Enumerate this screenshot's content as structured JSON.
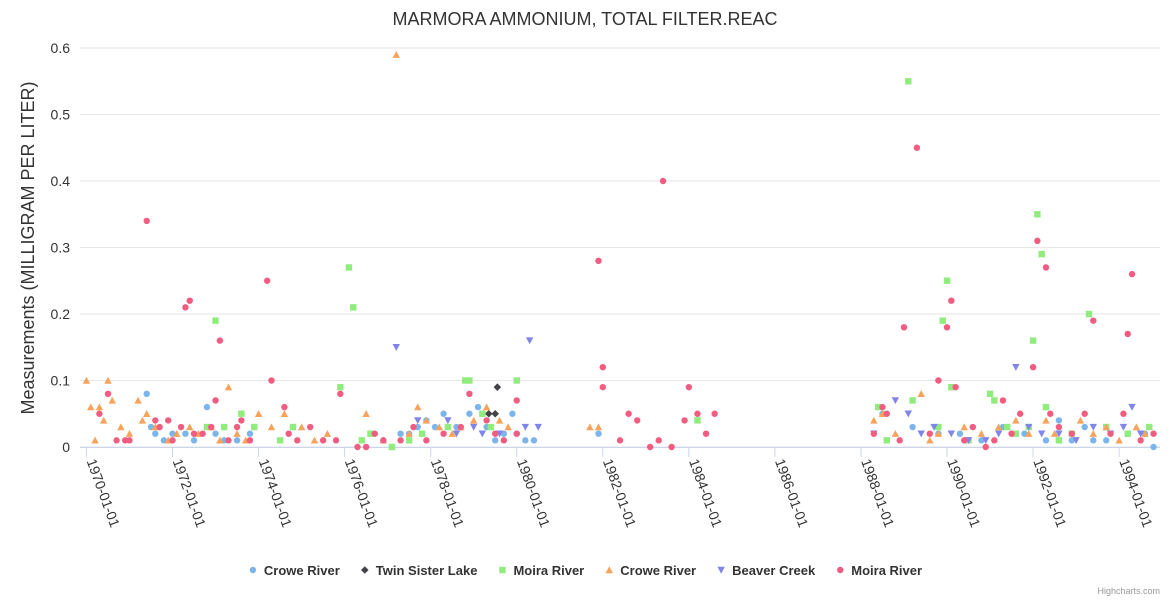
{
  "credit": "Highcharts.com",
  "chart_data": {
    "type": "scatter",
    "title": "MARMORA AMMONIUM, TOTAL FILTER.REAC",
    "ylabel": "Measurements (MILLIGRAM PER LITER)",
    "xlabel": "",
    "xlim": [
      1969.85,
      1994.95
    ],
    "ylim": [
      0,
      0.6
    ],
    "yticks": [
      0,
      0.1,
      0.2,
      0.3,
      0.4,
      0.5,
      0.6
    ],
    "ytick_labels": [
      "0",
      "0.1",
      "0.2",
      "0.3",
      "0.4",
      "0.5",
      "0.6"
    ],
    "xticks": [
      1970,
      1972,
      1974,
      1976,
      1978,
      1980,
      1982,
      1984,
      1986,
      1988,
      1990,
      1992,
      1994
    ],
    "xtick_labels": [
      "1970-01-01",
      "1972-01-01",
      "1974-01-01",
      "1976-01-01",
      "1978-01-01",
      "1980-01-01",
      "1982-01-01",
      "1984-01-01",
      "1986-01-01",
      "1988-01-01",
      "1990-01-01",
      "1992-01-01",
      "1994-01-01"
    ],
    "legend_position": "bottom",
    "series": [
      {
        "name": "Crowe River",
        "marker": "circle",
        "color": "#7cb5ec",
        "points": [
          [
            1971.4,
            0.08
          ],
          [
            1971.5,
            0.03
          ],
          [
            1971.6,
            0.02
          ],
          [
            1971.8,
            0.01
          ],
          [
            1972.0,
            0.02
          ],
          [
            1972.3,
            0.02
          ],
          [
            1972.5,
            0.01
          ],
          [
            1972.8,
            0.06
          ],
          [
            1973.0,
            0.02
          ],
          [
            1973.2,
            0.01
          ],
          [
            1973.5,
            0.01
          ],
          [
            1973.8,
            0.02
          ],
          [
            1976.9,
            0.01
          ],
          [
            1977.3,
            0.02
          ],
          [
            1977.5,
            0.02
          ],
          [
            1977.7,
            0.03
          ],
          [
            1977.9,
            0.04
          ],
          [
            1978.1,
            0.03
          ],
          [
            1978.3,
            0.05
          ],
          [
            1978.6,
            0.03
          ],
          [
            1978.9,
            0.05
          ],
          [
            1979.1,
            0.06
          ],
          [
            1979.3,
            0.03
          ],
          [
            1979.5,
            0.01
          ],
          [
            1979.7,
            0.02
          ],
          [
            1979.9,
            0.05
          ],
          [
            1980.0,
            0.02
          ],
          [
            1980.2,
            0.01
          ],
          [
            1980.4,
            0.01
          ],
          [
            1981.9,
            0.02
          ],
          [
            1988.5,
            0.05
          ],
          [
            1989.2,
            0.03
          ],
          [
            1989.8,
            0.02
          ],
          [
            1990.3,
            0.02
          ],
          [
            1990.8,
            0.01
          ],
          [
            1991.3,
            0.03
          ],
          [
            1991.8,
            0.02
          ],
          [
            1992.3,
            0.01
          ],
          [
            1992.6,
            0.04
          ],
          [
            1992.9,
            0.01
          ],
          [
            1993.2,
            0.03
          ],
          [
            1993.4,
            0.01
          ],
          [
            1993.7,
            0.01
          ],
          [
            1994.2,
            0.02
          ],
          [
            1994.6,
            0.02
          ],
          [
            1994.8,
            0.0
          ]
        ]
      },
      {
        "name": "Twin Sister Lake",
        "marker": "diamond",
        "color": "#434348",
        "points": [
          [
            1979.55,
            0.09
          ],
          [
            1979.35,
            0.05
          ],
          [
            1979.5,
            0.05
          ]
        ]
      },
      {
        "name": "Moira River",
        "marker": "square",
        "color": "#90ed7d",
        "points": [
          [
            1973.0,
            0.19
          ],
          [
            1972.8,
            0.03
          ],
          [
            1973.2,
            0.03
          ],
          [
            1973.6,
            0.05
          ],
          [
            1973.9,
            0.03
          ],
          [
            1974.5,
            0.01
          ],
          [
            1974.8,
            0.03
          ],
          [
            1975.9,
            0.09
          ],
          [
            1976.1,
            0.27
          ],
          [
            1976.2,
            0.21
          ],
          [
            1976.4,
            0.01
          ],
          [
            1976.6,
            0.02
          ],
          [
            1977.1,
            0.0
          ],
          [
            1977.5,
            0.01
          ],
          [
            1977.8,
            0.02
          ],
          [
            1978.4,
            0.03
          ],
          [
            1978.8,
            0.1
          ],
          [
            1978.9,
            0.1
          ],
          [
            1979.2,
            0.05
          ],
          [
            1979.4,
            0.03
          ],
          [
            1980.0,
            0.1
          ],
          [
            1984.2,
            0.04
          ],
          [
            1988.4,
            0.06
          ],
          [
            1988.6,
            0.01
          ],
          [
            1989.1,
            0.55
          ],
          [
            1989.2,
            0.07
          ],
          [
            1989.8,
            0.03
          ],
          [
            1989.9,
            0.19
          ],
          [
            1990.0,
            0.25
          ],
          [
            1990.1,
            0.09
          ],
          [
            1990.5,
            0.01
          ],
          [
            1991.0,
            0.08
          ],
          [
            1991.1,
            0.07
          ],
          [
            1991.4,
            0.03
          ],
          [
            1991.6,
            0.02
          ],
          [
            1991.9,
            0.03
          ],
          [
            1992.0,
            0.16
          ],
          [
            1992.1,
            0.35
          ],
          [
            1992.2,
            0.29
          ],
          [
            1992.3,
            0.06
          ],
          [
            1992.6,
            0.01
          ],
          [
            1992.9,
            0.02
          ],
          [
            1993.3,
            0.2
          ],
          [
            1993.7,
            0.03
          ],
          [
            1994.2,
            0.02
          ],
          [
            1994.7,
            0.03
          ]
        ]
      },
      {
        "name": "Crowe River",
        "marker": "triangle",
        "color": "#f7a35c",
        "points": [
          [
            1970.0,
            0.1
          ],
          [
            1970.1,
            0.06
          ],
          [
            1970.2,
            0.01
          ],
          [
            1970.3,
            0.06
          ],
          [
            1970.4,
            0.04
          ],
          [
            1970.5,
            0.1
          ],
          [
            1970.6,
            0.07
          ],
          [
            1970.8,
            0.03
          ],
          [
            1971.0,
            0.02
          ],
          [
            1971.2,
            0.07
          ],
          [
            1971.3,
            0.04
          ],
          [
            1971.4,
            0.05
          ],
          [
            1971.6,
            0.03
          ],
          [
            1971.9,
            0.01
          ],
          [
            1972.1,
            0.02
          ],
          [
            1972.4,
            0.03
          ],
          [
            1972.6,
            0.02
          ],
          [
            1972.9,
            0.03
          ],
          [
            1973.1,
            0.01
          ],
          [
            1973.3,
            0.09
          ],
          [
            1973.5,
            0.02
          ],
          [
            1973.7,
            0.01
          ],
          [
            1974.0,
            0.05
          ],
          [
            1974.3,
            0.03
          ],
          [
            1974.6,
            0.05
          ],
          [
            1975.0,
            0.03
          ],
          [
            1975.3,
            0.01
          ],
          [
            1975.6,
            0.02
          ],
          [
            1976.5,
            0.05
          ],
          [
            1976.9,
            0.01
          ],
          [
            1977.2,
            0.59
          ],
          [
            1977.5,
            0.02
          ],
          [
            1977.7,
            0.06
          ],
          [
            1977.9,
            0.04
          ],
          [
            1978.2,
            0.03
          ],
          [
            1978.5,
            0.02
          ],
          [
            1978.7,
            0.03
          ],
          [
            1979.0,
            0.04
          ],
          [
            1979.3,
            0.06
          ],
          [
            1979.6,
            0.04
          ],
          [
            1979.8,
            0.03
          ],
          [
            1981.7,
            0.03
          ],
          [
            1981.9,
            0.03
          ],
          [
            1988.3,
            0.04
          ],
          [
            1988.5,
            0.05
          ],
          [
            1988.8,
            0.02
          ],
          [
            1989.4,
            0.08
          ],
          [
            1989.6,
            0.01
          ],
          [
            1989.8,
            0.02
          ],
          [
            1990.4,
            0.03
          ],
          [
            1990.8,
            0.02
          ],
          [
            1991.2,
            0.03
          ],
          [
            1991.6,
            0.04
          ],
          [
            1991.9,
            0.02
          ],
          [
            1992.3,
            0.04
          ],
          [
            1992.5,
            0.02
          ],
          [
            1993.1,
            0.04
          ],
          [
            1993.4,
            0.02
          ],
          [
            1993.7,
            0.03
          ],
          [
            1994.0,
            0.01
          ],
          [
            1994.4,
            0.03
          ],
          [
            1994.6,
            0.02
          ]
        ]
      },
      {
        "name": "Beaver Creek",
        "marker": "triangle-down",
        "color": "#8085e9",
        "points": [
          [
            1977.2,
            0.15
          ],
          [
            1977.7,
            0.04
          ],
          [
            1978.4,
            0.04
          ],
          [
            1978.6,
            0.02
          ],
          [
            1979.0,
            0.03
          ],
          [
            1979.2,
            0.02
          ],
          [
            1979.6,
            0.02
          ],
          [
            1980.2,
            0.03
          ],
          [
            1980.3,
            0.16
          ],
          [
            1980.5,
            0.03
          ],
          [
            1988.3,
            0.02
          ],
          [
            1988.8,
            0.07
          ],
          [
            1989.1,
            0.05
          ],
          [
            1989.4,
            0.02
          ],
          [
            1989.7,
            0.03
          ],
          [
            1990.1,
            0.02
          ],
          [
            1990.5,
            0.01
          ],
          [
            1990.9,
            0.01
          ],
          [
            1991.2,
            0.02
          ],
          [
            1991.6,
            0.12
          ],
          [
            1991.9,
            0.03
          ],
          [
            1992.2,
            0.02
          ],
          [
            1992.6,
            0.02
          ],
          [
            1993.0,
            0.01
          ],
          [
            1993.4,
            0.03
          ],
          [
            1993.8,
            0.02
          ],
          [
            1994.1,
            0.03
          ],
          [
            1994.3,
            0.06
          ],
          [
            1994.5,
            0.02
          ]
        ]
      },
      {
        "name": "Moira River",
        "marker": "circle",
        "color": "#f15c80",
        "points": [
          [
            1970.3,
            0.05
          ],
          [
            1970.5,
            0.08
          ],
          [
            1970.7,
            0.01
          ],
          [
            1970.9,
            0.01
          ],
          [
            1971.0,
            0.01
          ],
          [
            1971.4,
            0.34
          ],
          [
            1971.6,
            0.04
          ],
          [
            1971.7,
            0.03
          ],
          [
            1971.9,
            0.04
          ],
          [
            1972.0,
            0.01
          ],
          [
            1972.2,
            0.03
          ],
          [
            1972.3,
            0.21
          ],
          [
            1972.4,
            0.22
          ],
          [
            1972.5,
            0.02
          ],
          [
            1972.7,
            0.02
          ],
          [
            1972.9,
            0.03
          ],
          [
            1973.0,
            0.07
          ],
          [
            1973.1,
            0.16
          ],
          [
            1973.3,
            0.01
          ],
          [
            1973.5,
            0.03
          ],
          [
            1973.6,
            0.04
          ],
          [
            1973.8,
            0.01
          ],
          [
            1974.2,
            0.25
          ],
          [
            1974.3,
            0.1
          ],
          [
            1974.6,
            0.06
          ],
          [
            1974.7,
            0.02
          ],
          [
            1974.9,
            0.01
          ],
          [
            1975.2,
            0.03
          ],
          [
            1975.5,
            0.01
          ],
          [
            1975.8,
            0.01
          ],
          [
            1975.9,
            0.08
          ],
          [
            1976.3,
            0.0
          ],
          [
            1976.5,
            0.0
          ],
          [
            1976.7,
            0.02
          ],
          [
            1976.9,
            0.01
          ],
          [
            1977.3,
            0.01
          ],
          [
            1977.6,
            0.03
          ],
          [
            1977.9,
            0.01
          ],
          [
            1978.3,
            0.02
          ],
          [
            1978.7,
            0.03
          ],
          [
            1978.9,
            0.08
          ],
          [
            1979.3,
            0.04
          ],
          [
            1979.5,
            0.02
          ],
          [
            1979.7,
            0.01
          ],
          [
            1980.0,
            0.07
          ],
          [
            1980.0,
            0.02
          ],
          [
            1981.9,
            0.28
          ],
          [
            1982.0,
            0.12
          ],
          [
            1982.0,
            0.09
          ],
          [
            1982.4,
            0.01
          ],
          [
            1982.6,
            0.05
          ],
          [
            1982.8,
            0.04
          ],
          [
            1983.1,
            0.0
          ],
          [
            1983.3,
            0.01
          ],
          [
            1983.4,
            0.4
          ],
          [
            1983.6,
            0.0
          ],
          [
            1983.9,
            0.04
          ],
          [
            1984.0,
            0.09
          ],
          [
            1984.2,
            0.05
          ],
          [
            1984.4,
            0.02
          ],
          [
            1984.6,
            0.05
          ],
          [
            1988.3,
            0.02
          ],
          [
            1988.5,
            0.06
          ],
          [
            1988.6,
            0.05
          ],
          [
            1988.9,
            0.01
          ],
          [
            1989.0,
            0.18
          ],
          [
            1989.3,
            0.45
          ],
          [
            1989.6,
            0.02
          ],
          [
            1989.8,
            0.1
          ],
          [
            1990.0,
            0.18
          ],
          [
            1990.1,
            0.22
          ],
          [
            1990.2,
            0.09
          ],
          [
            1990.4,
            0.01
          ],
          [
            1990.6,
            0.03
          ],
          [
            1990.9,
            0.0
          ],
          [
            1991.1,
            0.01
          ],
          [
            1991.3,
            0.07
          ],
          [
            1991.5,
            0.02
          ],
          [
            1991.7,
            0.05
          ],
          [
            1992.0,
            0.12
          ],
          [
            1992.1,
            0.31
          ],
          [
            1992.3,
            0.27
          ],
          [
            1992.4,
            0.05
          ],
          [
            1992.6,
            0.03
          ],
          [
            1992.9,
            0.02
          ],
          [
            1993.2,
            0.05
          ],
          [
            1993.4,
            0.19
          ],
          [
            1993.8,
            0.02
          ],
          [
            1994.1,
            0.05
          ],
          [
            1994.2,
            0.17
          ],
          [
            1994.3,
            0.26
          ],
          [
            1994.5,
            0.01
          ],
          [
            1994.8,
            0.02
          ]
        ]
      }
    ]
  }
}
